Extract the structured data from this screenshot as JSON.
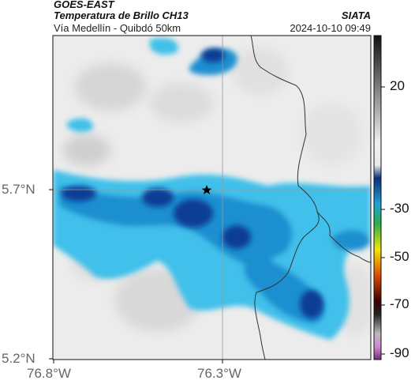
{
  "header": {
    "satellite": "GOES-EAST",
    "product": "Temperatura de Brillo CH13",
    "subtitle": "Vía Medellín - Quibdó 50km",
    "organization": "SIATA",
    "timestamp": "2024-10-10 09:49"
  },
  "map": {
    "lat_ticks": [
      "5.7°N",
      "5.2°N"
    ],
    "lon_ticks": [
      "76.8°W",
      "76.3°W"
    ],
    "marker": "star",
    "marker_icon": "star-icon"
  },
  "colorbar": {
    "ticks": [
      "20",
      "-30",
      "-50",
      "-70",
      "-90"
    ],
    "colors": [
      "#1a1a1a",
      "#9a9a9a",
      "#f2f2f2",
      "#0a3a8c",
      "#1fa3d9",
      "#2aa84a",
      "#f2e600",
      "#e04a00",
      "#6a0000",
      "#d08ad0"
    ]
  },
  "palette": {
    "cloud_deep": "#0d3d95",
    "cloud_mid": "#1a8fd0",
    "cloud_light": "#3fc0ea",
    "clear_sky": "#ececec",
    "border": "#333333"
  }
}
